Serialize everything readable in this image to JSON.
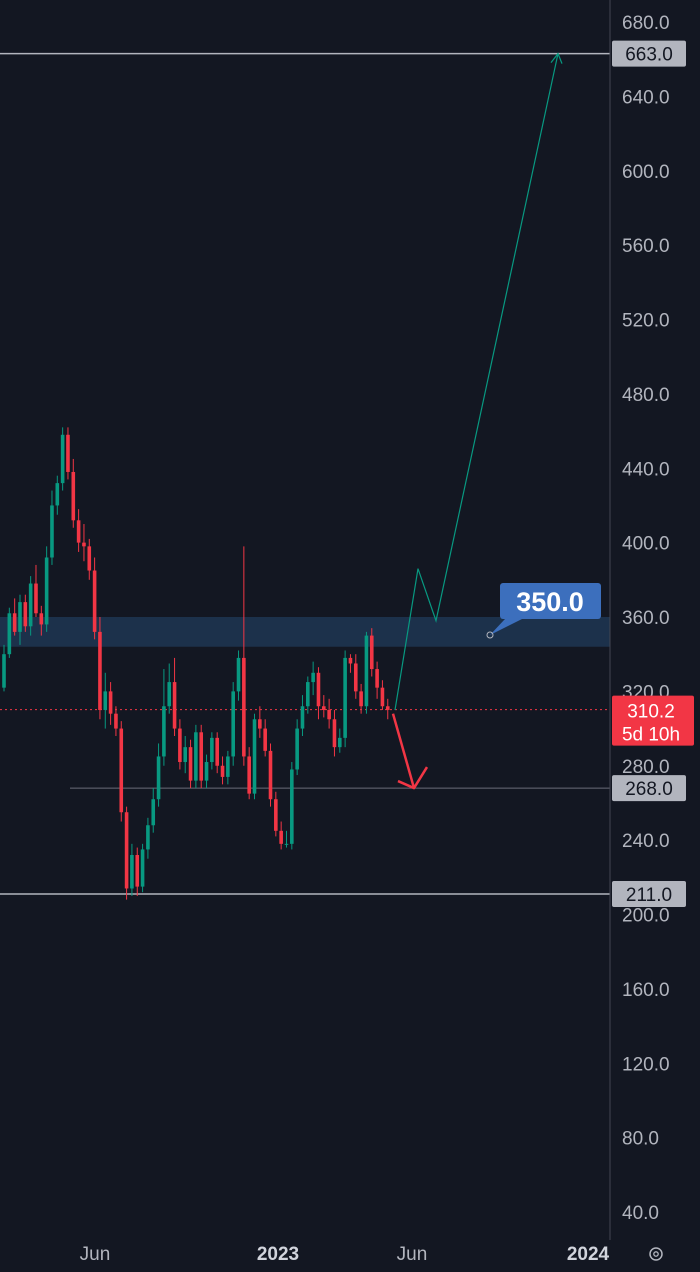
{
  "chart_data": {
    "type": "candlestick",
    "y_axis": {
      "ticks": [
        680,
        640,
        600,
        560,
        520,
        480,
        440,
        400,
        360,
        320,
        280,
        240,
        200,
        160,
        120,
        80,
        40
      ],
      "tick_labels": [
        "680.0",
        "640.0",
        "600.0",
        "560.0",
        "520.0",
        "480.0",
        "440.0",
        "400.0",
        "360.0",
        "320.0",
        "280.0",
        "240.0",
        "200.0",
        "160.0",
        "120.0",
        "80.0",
        "40.0"
      ],
      "ylim": [
        20,
        700
      ]
    },
    "x_axis": {
      "labels": [
        "Jun",
        "2023",
        "Jun",
        "2024"
      ]
    },
    "price_lines": [
      {
        "label": "663.0",
        "value": 663
      },
      {
        "label": "211.0",
        "value": 211
      },
      {
        "label": "268.0",
        "value": 268
      }
    ],
    "current_price": {
      "label": "310.2",
      "value": 310.2,
      "countdown": "5d 10h",
      "color": "#f23645"
    },
    "zone": {
      "low": 344,
      "high": 360,
      "label": "350.0",
      "color": "#2962ff"
    },
    "colors": {
      "up": "#089981",
      "down": "#f23645",
      "background": "#131722",
      "zone_fill": "#1e3450",
      "tag_blue": "#3c6fbd"
    },
    "candles": [
      [
        322,
        340,
        320,
        345,
        318
      ],
      [
        340,
        362,
        338,
        365,
        330
      ],
      [
        362,
        352,
        350,
        370,
        342
      ],
      [
        352,
        368,
        345,
        372,
        345
      ],
      [
        368,
        355,
        352,
        372,
        340
      ],
      [
        355,
        378,
        350,
        382,
        348
      ],
      [
        378,
        362,
        360,
        388,
        358
      ],
      [
        362,
        356,
        350,
        366,
        345
      ],
      [
        356,
        392,
        352,
        398,
        350
      ],
      [
        392,
        420,
        388,
        428,
        386
      ],
      [
        420,
        432,
        415,
        436,
        410
      ],
      [
        432,
        458,
        428,
        462,
        425
      ],
      [
        458,
        438,
        434,
        462,
        430
      ],
      [
        438,
        412,
        408,
        445,
        405
      ],
      [
        412,
        400,
        395,
        418,
        390
      ],
      [
        400,
        398,
        390,
        410,
        388
      ],
      [
        398,
        385,
        380,
        402,
        375
      ],
      [
        385,
        352,
        348,
        392,
        345
      ],
      [
        352,
        310,
        305,
        360,
        210
      ],
      [
        310,
        320,
        300,
        330,
        295
      ],
      [
        320,
        308,
        302,
        325,
        300
      ],
      [
        308,
        300,
        296,
        312,
        290
      ],
      [
        300,
        255,
        250,
        304,
        245
      ],
      [
        255,
        214,
        208,
        258,
        190
      ],
      [
        214,
        232,
        210,
        238,
        206
      ],
      [
        232,
        215,
        210,
        236,
        208
      ],
      [
        215,
        235,
        212,
        238,
        212
      ],
      [
        235,
        248,
        230,
        252,
        228
      ],
      [
        248,
        262,
        244,
        268,
        240
      ],
      [
        262,
        285,
        258,
        292,
        255
      ],
      [
        285,
        312,
        280,
        332,
        278
      ],
      [
        312,
        325,
        308,
        335,
        300
      ],
      [
        325,
        300,
        296,
        338,
        295
      ],
      [
        300,
        282,
        278,
        305,
        275
      ],
      [
        282,
        290,
        276,
        296,
        272
      ],
      [
        290,
        272,
        268,
        294,
        266
      ],
      [
        272,
        298,
        268,
        302,
        265
      ],
      [
        298,
        272,
        268,
        302,
        265
      ],
      [
        272,
        282,
        268,
        286,
        264
      ],
      [
        282,
        295,
        278,
        298,
        275
      ],
      [
        295,
        280,
        276,
        298,
        270
      ],
      [
        280,
        274,
        270,
        285,
        265
      ],
      [
        274,
        285,
        270,
        288,
        268
      ],
      [
        285,
        320,
        280,
        325,
        278
      ],
      [
        320,
        338,
        315,
        342,
        312
      ],
      [
        338,
        285,
        280,
        398,
        275
      ],
      [
        285,
        265,
        262,
        290,
        260
      ],
      [
        265,
        305,
        262,
        308,
        260
      ],
      [
        305,
        300,
        295,
        312,
        292
      ],
      [
        300,
        288,
        285,
        305,
        280
      ],
      [
        288,
        262,
        258,
        292,
        256
      ],
      [
        262,
        245,
        242,
        266,
        240
      ],
      [
        245,
        238,
        235,
        250,
        225
      ],
      [
        238,
        238,
        236,
        245,
        234
      ],
      [
        238,
        278,
        235,
        282,
        232
      ],
      [
        278,
        300,
        275,
        305,
        270
      ],
      [
        300,
        312,
        296,
        318,
        292
      ],
      [
        312,
        325,
        308,
        328,
        305
      ],
      [
        325,
        330,
        318,
        336,
        315
      ],
      [
        330,
        312,
        305,
        333,
        300
      ],
      [
        312,
        310,
        306,
        318,
        302
      ],
      [
        310,
        305,
        300,
        316,
        298
      ],
      [
        305,
        290,
        285,
        310,
        282
      ],
      [
        290,
        295,
        287,
        300,
        284
      ],
      [
        295,
        338,
        290,
        342,
        268
      ],
      [
        338,
        335,
        330,
        340,
        330
      ],
      [
        335,
        320,
        316,
        340,
        315
      ],
      [
        320,
        312,
        308,
        324,
        305
      ],
      [
        312,
        350,
        308,
        352,
        305
      ],
      [
        350,
        332,
        328,
        354,
        325
      ],
      [
        332,
        322,
        316,
        336,
        312
      ],
      [
        322,
        312,
        310,
        326,
        302
      ],
      [
        312,
        310,
        305,
        316,
        298
      ]
    ],
    "projections": [
      {
        "color": "#089981",
        "points": [
          [
            395,
            310
          ],
          [
            418,
            386
          ],
          [
            436,
            358
          ],
          [
            558,
            663
          ]
        ]
      },
      {
        "color": "#f23645",
        "points": [
          [
            393,
            308
          ],
          [
            414,
            268
          ]
        ]
      }
    ]
  },
  "zone_label": "350.0",
  "current_price_label": "310.2",
  "countdown_label": "5d 10h",
  "settings_icon": "gear-icon"
}
